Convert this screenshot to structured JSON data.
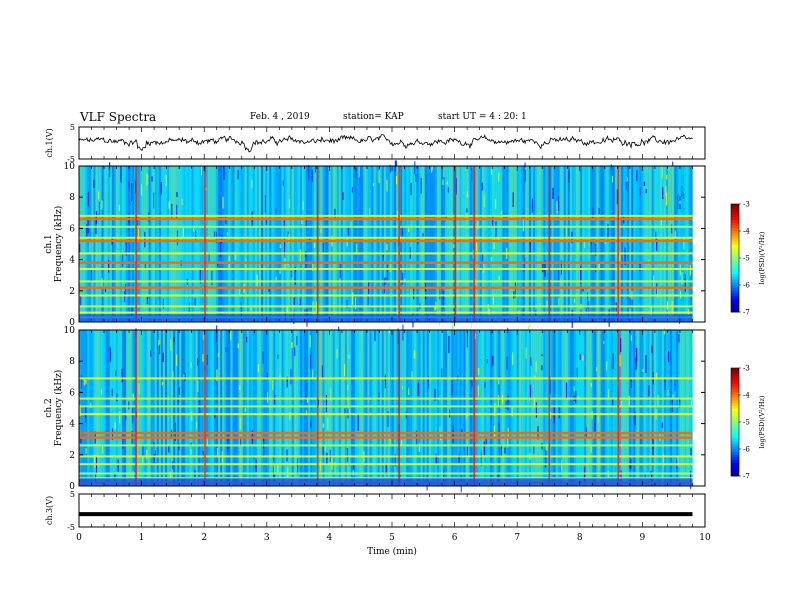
{
  "header": {
    "title": "VLF Spectra",
    "date": "Feb. 4 , 2019",
    "station": "station= KAP",
    "start": "start UT = 4 : 20: 1"
  },
  "chart_data": [
    {
      "type": "line",
      "name": "ch1-waveform",
      "ylabel": "ch.1(V)",
      "ylim": [
        -5,
        5
      ],
      "yticks": [
        "5",
        "-5"
      ],
      "xlim": [
        0,
        10
      ],
      "x_extent_min": 9.8,
      "description_values": "noisy trace around +0.5 V with dips near t=1.0 and t=2.7"
    },
    {
      "type": "heatmap",
      "name": "ch1-spectrogram",
      "ylabel": "ch.1\nFrequency (kHz)",
      "ylabel_lines": [
        "ch.1",
        "Frequency (kHz)"
      ],
      "ylim": [
        0,
        10
      ],
      "yticks": [
        "0",
        "2",
        "4",
        "6",
        "8",
        "10"
      ],
      "xlim": [
        0,
        10
      ],
      "x_extent_min": 9.8,
      "color_range": [
        -7,
        -3
      ],
      "colorbar_ticks": [
        "-3",
        "-4",
        "-5",
        "-6",
        "-7"
      ],
      "colorbar_label": "log(PSD)(V²/Hz)",
      "bands_khz": [
        0.3,
        0.6,
        1.0,
        1.7,
        2.2,
        2.6,
        3.4,
        3.8,
        4.4,
        5.2,
        5.4,
        6.1,
        6.6,
        6.8
      ],
      "strong_bands_khz": [
        2.2,
        3.8,
        5.2,
        6.6
      ],
      "bursts_min": [
        0.9,
        2.0,
        3.8,
        5.1,
        6.0,
        6.3,
        7.5,
        8.6
      ]
    },
    {
      "type": "heatmap",
      "name": "ch2-spectrogram",
      "ylabel": "ch.2\nFrequency (kHz)",
      "ylabel_lines": [
        "ch.2",
        "Frequency (kHz)"
      ],
      "ylim": [
        0,
        10
      ],
      "yticks": [
        "0",
        "2",
        "4",
        "6",
        "8",
        "10"
      ],
      "xlim": [
        0,
        10
      ],
      "x_extent_min": 9.8,
      "color_range": [
        -7,
        -3
      ],
      "colorbar_ticks": [
        "-3",
        "-4",
        "-5",
        "-6",
        "-7"
      ],
      "colorbar_label": "log(PSD)(V²/Hz)",
      "bands_khz": [
        0.2,
        0.5,
        0.8,
        1.4,
        1.9,
        2.6,
        3.1,
        3.4,
        4.6,
        5.1,
        5.6,
        6.9
      ],
      "strong_bands_khz": [
        0.2,
        3.1,
        3.4
      ],
      "bursts_min": [
        0.9,
        2.0,
        3.8,
        5.1,
        6.3,
        7.5,
        8.6
      ]
    },
    {
      "type": "line",
      "name": "ch3-waveform",
      "ylabel": "ch.3(V)",
      "ylim": [
        -5,
        5
      ],
      "yticks": [
        "5",
        "-5"
      ],
      "xlim": [
        0,
        10
      ],
      "x_extent_min": 9.8,
      "constant_value": -1.1
    }
  ],
  "xaxis": {
    "label": "Time (min)",
    "ticks": [
      "0",
      "1",
      "2",
      "3",
      "4",
      "5",
      "6",
      "7",
      "8",
      "9",
      "10"
    ]
  }
}
